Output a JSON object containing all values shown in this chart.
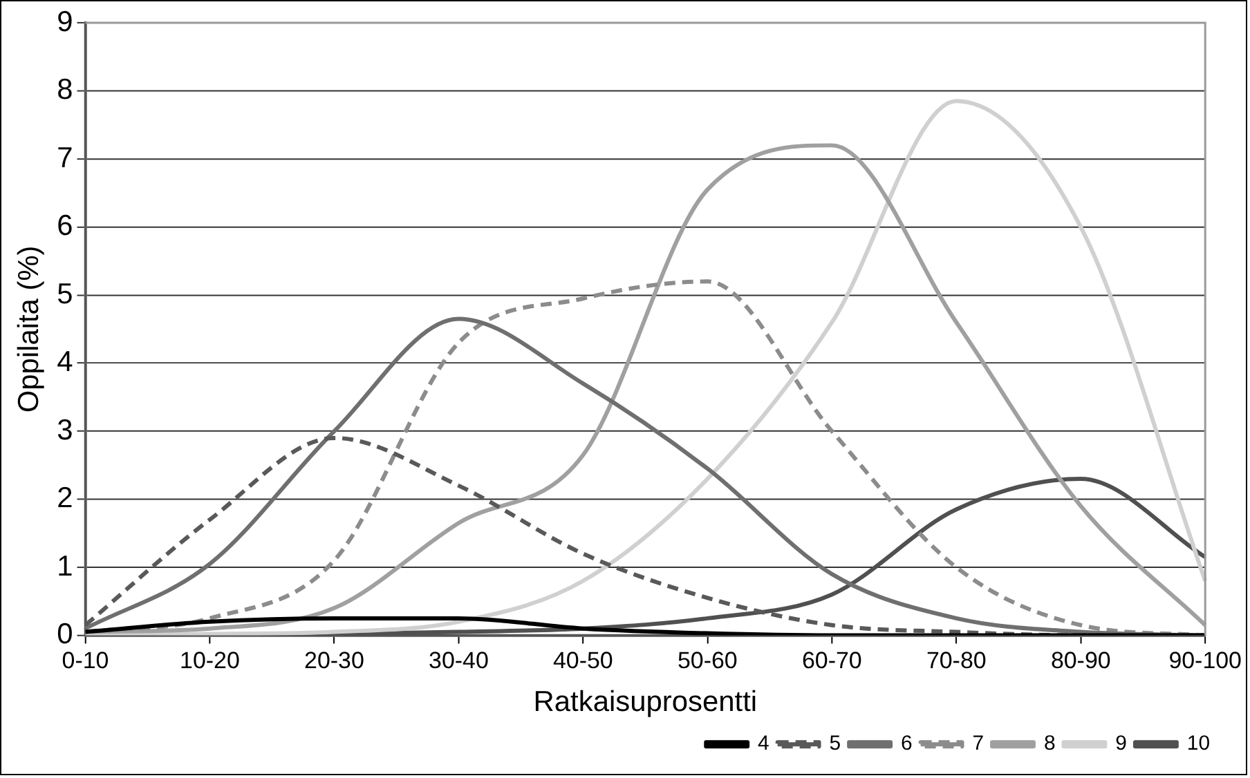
{
  "chart_data": {
    "type": "line",
    "xlabel": "Ratkaisuprosentti",
    "ylabel": "Oppilaita (%)",
    "categories": [
      "0-10",
      "10-20",
      "20-30",
      "30-40",
      "40-50",
      "50-60",
      "60-70",
      "70-80",
      "80-90",
      "90-100"
    ],
    "series": [
      {
        "name": "4",
        "color": "#000000",
        "line_style": "solid",
        "values": [
          0.05,
          0.2,
          0.25,
          0.25,
          0.1,
          0.03,
          0,
          0,
          0,
          0
        ]
      },
      {
        "name": "5",
        "color": "#595959",
        "line_style": "dashed",
        "values": [
          0.15,
          1.7,
          2.9,
          2.2,
          1.2,
          0.55,
          0.15,
          0.05,
          0,
          0
        ]
      },
      {
        "name": "6",
        "color": "#6f6f6f",
        "line_style": "solid",
        "values": [
          0.1,
          1.05,
          3.0,
          4.65,
          3.7,
          2.45,
          0.9,
          0.25,
          0.05,
          0
        ]
      },
      {
        "name": "7",
        "color": "#8c8c8c",
        "line_style": "dashed",
        "values": [
          0.05,
          0.25,
          1.1,
          4.3,
          4.95,
          5.2,
          3.0,
          1.0,
          0.15,
          0
        ]
      },
      {
        "name": "8",
        "color": "#a0a0a0",
        "line_style": "solid",
        "values": [
          0.05,
          0.1,
          0.4,
          1.65,
          2.65,
          6.55,
          7.2,
          4.6,
          1.9,
          0.15
        ]
      },
      {
        "name": "9",
        "color": "#d0d0d0",
        "line_style": "solid",
        "values": [
          0,
          0.02,
          0.05,
          0.2,
          0.8,
          2.3,
          4.6,
          7.85,
          6.0,
          0.8
        ]
      },
      {
        "name": "10",
        "color": "#505050",
        "line_style": "solid",
        "values": [
          0,
          0,
          0.02,
          0.05,
          0.1,
          0.25,
          0.6,
          1.85,
          2.3,
          1.15
        ]
      }
    ],
    "ylim": [
      0,
      9
    ],
    "yticks": [
      0,
      1,
      2,
      3,
      4,
      5,
      6,
      7,
      8,
      9
    ],
    "grid": "y",
    "legend": "bottom right",
    "marker": "none"
  }
}
